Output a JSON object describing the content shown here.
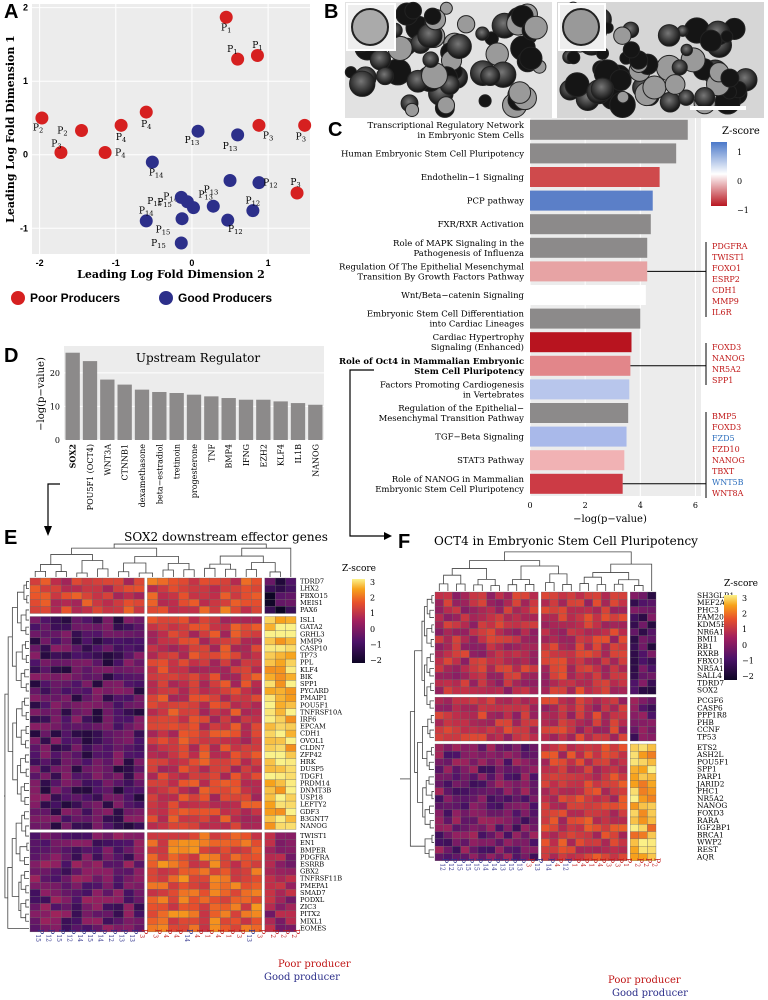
{
  "panel_labels": {
    "A": "A",
    "B": "B",
    "C": "C",
    "D": "D",
    "E": "E",
    "F": "F"
  },
  "chart_data": [
    {
      "id": "A",
      "type": "scatter",
      "xlabel": "Leading Log Fold Dimension 2",
      "ylabel": "Leading Log Fold Dimension 1",
      "xlim": [
        -2.1,
        1.55
      ],
      "ylim": [
        -1.35,
        2.05
      ],
      "xticks": [
        "-2",
        "-1",
        "0",
        "1"
      ],
      "yticks": [
        "-1",
        "0",
        "1",
        "2"
      ],
      "colors": {
        "poor": "#d62020",
        "good": "#2c2f8a"
      },
      "legend": {
        "poor": "Poor Producers",
        "good": "Good Producers"
      },
      "points": [
        {
          "x": 0.45,
          "y": 1.87,
          "g": "poor",
          "label": "P1",
          "lx": 0.0,
          "ly": -0.14
        },
        {
          "x": 0.6,
          "y": 1.3,
          "g": "poor",
          "label": "P1",
          "lx": -0.07,
          "ly": 0.14
        },
        {
          "x": 0.86,
          "y": 1.35,
          "g": "poor",
          "label": "P1",
          "lx": 0.0,
          "ly": 0.14
        },
        {
          "x": -1.97,
          "y": 0.5,
          "g": "poor",
          "label": "P2",
          "lx": -0.05,
          "ly": -0.13
        },
        {
          "x": -1.45,
          "y": 0.33,
          "g": "poor",
          "label": "P2",
          "lx": -0.25,
          "ly": 0.0
        },
        {
          "x": -1.72,
          "y": 0.03,
          "g": "poor",
          "label": "P3",
          "lx": -0.06,
          "ly": 0.12
        },
        {
          "x": -0.6,
          "y": 0.58,
          "g": "poor",
          "label": "P4",
          "lx": 0.0,
          "ly": -0.16
        },
        {
          "x": -0.93,
          "y": 0.4,
          "g": "poor",
          "label": "P4",
          "lx": 0.0,
          "ly": -0.16
        },
        {
          "x": -1.14,
          "y": 0.03,
          "g": "poor",
          "label": "P4",
          "lx": 0.2,
          "ly": 0.0
        },
        {
          "x": 0.88,
          "y": 0.4,
          "g": "poor",
          "label": "P3",
          "lx": 0.12,
          "ly": -0.14
        },
        {
          "x": 1.48,
          "y": 0.4,
          "g": "poor",
          "label": "P3",
          "lx": -0.05,
          "ly": -0.15
        },
        {
          "x": 1.38,
          "y": -0.52,
          "g": "poor",
          "label": "P3",
          "lx": -0.02,
          "ly": 0.15
        },
        {
          "x": 0.08,
          "y": 0.32,
          "g": "good",
          "label": "P13",
          "lx": -0.08,
          "ly": -0.12
        },
        {
          "x": 0.6,
          "y": 0.27,
          "g": "good",
          "label": "P13",
          "lx": -0.1,
          "ly": -0.15
        },
        {
          "x": -0.52,
          "y": -0.1,
          "g": "good",
          "label": "P14",
          "lx": 0.05,
          "ly": -0.14
        },
        {
          "x": 0.5,
          "y": -0.35,
          "g": "good",
          "label": "P13",
          "lx": -0.25,
          "ly": -0.12
        },
        {
          "x": -0.06,
          "y": -0.64,
          "g": "good",
          "label": "P15",
          "lx": -0.3,
          "ly": 0.0
        },
        {
          "x": 0.02,
          "y": -0.72,
          "g": "good",
          "label": "P14",
          "lx": -0.3,
          "ly": 0.15
        },
        {
          "x": -0.14,
          "y": -0.58,
          "g": "good",
          "label": "P15",
          "lx": -0.35,
          "ly": -0.05
        },
        {
          "x": 0.28,
          "y": -0.7,
          "g": "good",
          "label": "P13",
          "lx": -0.1,
          "ly": 0.16
        },
        {
          "x": 0.47,
          "y": -0.89,
          "g": "good",
          "label": "P12",
          "lx": 0.1,
          "ly": -0.12
        },
        {
          "x": 0.8,
          "y": -0.76,
          "g": "good",
          "label": "P12",
          "lx": 0.0,
          "ly": 0.14
        },
        {
          "x": -0.13,
          "y": -0.87,
          "g": "good",
          "label": "P15",
          "lx": -0.25,
          "ly": -0.15
        },
        {
          "x": -0.14,
          "y": -1.2,
          "g": "good",
          "label": "P15",
          "lx": -0.3,
          "ly": 0.0
        },
        {
          "x": -0.6,
          "y": -0.9,
          "g": "good",
          "label": "P14",
          "lx": 0.0,
          "ly": 0.14
        },
        {
          "x": 0.88,
          "y": -0.38,
          "g": "good",
          "label": "P12",
          "lx": 0.15,
          "ly": 0.0
        }
      ]
    },
    {
      "id": "C",
      "type": "bar",
      "orientation": "horizontal",
      "xlabel": "−log(p−value)",
      "xlim": [
        0,
        6.2
      ],
      "xticks": [
        "0",
        "2",
        "4",
        "6"
      ],
      "legend_title": "Z-score",
      "legend_ticks": [
        "1",
        "0",
        "−1"
      ],
      "categories": [
        [
          "Transcriptional Regulatory Network",
          "in Embryonic Stem Cells"
        ],
        [
          "Human Embryonic Stem Cell Pluripotency"
        ],
        [
          "Endothelin−1 Signaling"
        ],
        [
          "PCP pathway"
        ],
        [
          "FXR/RXR Activation"
        ],
        [
          "Role of MAPK Signaling in the",
          "Pathogenesis of Influenza"
        ],
        [
          "Regulation Of The Epithelial Mesenchymal",
          "Transition By Growth Factors Pathway"
        ],
        [
          "Wnt/Beta−catenin Signaling"
        ],
        [
          "Embryonic Stem Cell Differentiation",
          "into Cardiac Lineages"
        ],
        [
          "Cardiac Hypertrophy",
          "Signaling (Enhanced)"
        ],
        [
          "Role of Oct4 in Mammalian Embryonic",
          "Stem Cell Pluripotency"
        ],
        [
          "Factors Promoting Cardiogenesis",
          "in Vertebrates"
        ],
        [
          "Regulation of the Epithelial−",
          "Mesenchymal Transition Pathway"
        ],
        [
          "TGF−Beta Signaling"
        ],
        [
          "STAT3 Pathway"
        ],
        [
          "Role of NANOG in Mammalian",
          "Embryonic Stem Cell Pluripotency"
        ]
      ],
      "values": [
        5.72,
        5.3,
        4.7,
        4.45,
        4.38,
        4.25,
        4.25,
        4.2,
        4.0,
        3.68,
        3.64,
        3.6,
        3.56,
        3.5,
        3.42,
        3.36
      ],
      "bar_colors": [
        "#8c8a8a",
        "#8c8a8a",
        "#cf4a4c",
        "#5b7fc8",
        "#8c8a8a",
        "#8c8a8a",
        "#e7a3a4",
        "#ffffff",
        "#8c8a8a",
        "#b8141f",
        "#e2868a",
        "#b8c6ec",
        "#8c8a8a",
        "#a9b9ea",
        "#f1b2b4",
        "#cc3b45"
      ],
      "gene_boxes": [
        {
          "genes": [
            [
              "PDGFRA",
              "#c01717"
            ],
            [
              "TWIST1",
              "#c01717"
            ],
            [
              "FOXO1",
              "#c01717"
            ],
            [
              "ESRP2",
              "#c01717"
            ],
            [
              "CDH1",
              "#c01717"
            ],
            [
              "MMP9",
              "#c01717"
            ],
            [
              "IL6R",
              "#c01717"
            ]
          ]
        },
        {
          "genes": [
            [
              "FOXD3",
              "#c01717"
            ],
            [
              "NANOG",
              "#c01717"
            ],
            [
              "NR5A2",
              "#c01717"
            ],
            [
              "SPP1",
              "#c01717"
            ]
          ]
        },
        {
          "genes": [
            [
              "BMP5",
              "#c01717"
            ],
            [
              "FOXD3",
              "#c01717"
            ],
            [
              "FZD5",
              "#2e6fbd"
            ],
            [
              "FZD10",
              "#c01717"
            ],
            [
              "NANOG",
              "#c01717"
            ],
            [
              "TBXT",
              "#c01717"
            ],
            [
              "WNT5B",
              "#2e6fbd"
            ],
            [
              "WNT8A",
              "#c01717"
            ]
          ]
        }
      ]
    },
    {
      "id": "D",
      "type": "bar",
      "title": "Upstream Regulator",
      "ylabel": "−log(p−value)",
      "ylim": [
        0,
        28
      ],
      "yticks": [
        "0",
        "10",
        "20"
      ],
      "categories": [
        "SOX2",
        "POU5F1 (OCT4)",
        "WNT3A",
        "CTNNB1",
        "dexamethasone",
        "beta−estradiol",
        "tretinoin",
        "progesterone",
        "TNF",
        "BMP4",
        "IFNG",
        "EZH2",
        "KLF4",
        "IL1B",
        "NANOG"
      ],
      "values": [
        26,
        23.5,
        18,
        16.5,
        15,
        14.3,
        14,
        13.5,
        13,
        12.5,
        12,
        12,
        11.5,
        11,
        10.5
      ]
    }
  ],
  "panelE": {
    "title": "SOX2 downstream effector genes",
    "legend_title": "Z-score",
    "legend_ticks": [
      "3",
      "2",
      "1",
      "0",
      "−1",
      "−2"
    ],
    "genes": [
      "TDRD7",
      "LHX2",
      "FBXO15",
      "MEIS1",
      "PAX6",
      "ISL1",
      "GATA2",
      "GRHL3",
      "MMP9",
      "CASP10",
      "TP73",
      "PPL",
      "KLF4",
      "BIK",
      "SPP1",
      "PYCARD",
      "PMAIP1",
      "POU5F1",
      "TNFRSF10A",
      "IRF6",
      "EPCAM",
      "CDH1",
      "OVOL1",
      "CLDN7",
      "ZFP42",
      "HRK",
      "DUSP5",
      "TDGF1",
      "PRDM14",
      "DNMT3B",
      "USP18",
      "LEFTY2",
      "GDF3",
      "B3GNT7",
      "NANOG",
      "TWIST1",
      "EN1",
      "BMPER",
      "PDGFRA",
      "ESRRB",
      "GBX2",
      "TNFRSF11B",
      "PMEPA1",
      "SMAD7",
      "PODXL",
      "ZIC3",
      "PITX2",
      "MIXL1",
      "EOMES"
    ],
    "columns": [
      {
        "l": "P15",
        "g": "good"
      },
      {
        "l": "P12",
        "g": "good"
      },
      {
        "l": "P15",
        "g": "good"
      },
      {
        "l": "P12",
        "g": "good"
      },
      {
        "l": "P14",
        "g": "good"
      },
      {
        "l": "P15",
        "g": "good"
      },
      {
        "l": "P14",
        "g": "good"
      },
      {
        "l": "P12",
        "g": "good"
      },
      {
        "l": "P13",
        "g": "good"
      },
      {
        "l": "P13",
        "g": "good"
      },
      {
        "l": "P3",
        "g": "poor"
      },
      {
        "l": "P3",
        "g": "poor"
      },
      {
        "l": "P4",
        "g": "poor"
      },
      {
        "l": "P4",
        "g": "poor"
      },
      {
        "l": "P14",
        "g": "good"
      },
      {
        "l": "P4",
        "g": "poor"
      },
      {
        "l": "P1",
        "g": "poor"
      },
      {
        "l": "P4",
        "g": "poor"
      },
      {
        "l": "P1",
        "g": "poor"
      },
      {
        "l": "P3",
        "g": "poor"
      },
      {
        "l": "P13",
        "g": "good"
      },
      {
        "l": "P3",
        "g": "poor"
      },
      {
        "l": "P2",
        "g": "poor"
      },
      {
        "l": "P2",
        "g": "poor"
      },
      {
        "l": "P2",
        "g": "poor"
      }
    ],
    "legend_poor": "Poor producer",
    "legend_good": "Good producer"
  },
  "panelF": {
    "title": "OCT4 in Embryonic Stem Cell Pluripotency",
    "legend_title": "Z-score",
    "legend_ticks": [
      "3",
      "2",
      "1",
      "0",
      "−1",
      "−2"
    ],
    "genes": [
      "SH3GLB1",
      "MEF2A",
      "PHC3",
      "FAM208A",
      "KDM5B",
      "NR6A1",
      "BMI1",
      "RB1",
      "RXRB",
      "FBXO15",
      "NR5A1",
      "SALL4",
      "TDRD7",
      "SOX2",
      "PCGF6",
      "CASP6",
      "PPP1R8",
      "PHB",
      "CCNF",
      "TP53",
      "ETS2",
      "ASH2L",
      "POU5F1",
      "SPP1",
      "PARP1",
      "JARID2",
      "PHC1",
      "NR5A2",
      "NANOG",
      "FOXD3",
      "RARA",
      "IGF2BP1",
      "BRCA1",
      "WWP2",
      "REST",
      "AQR"
    ],
    "columns": [
      {
        "l": "P12",
        "g": "good"
      },
      {
        "l": "P12",
        "g": "good"
      },
      {
        "l": "P15",
        "g": "good"
      },
      {
        "l": "P15",
        "g": "good"
      },
      {
        "l": "P15",
        "g": "good"
      },
      {
        "l": "P14",
        "g": "good"
      },
      {
        "l": "P14",
        "g": "good"
      },
      {
        "l": "P13",
        "g": "good"
      },
      {
        "l": "P15",
        "g": "good"
      },
      {
        "l": "P13",
        "g": "good"
      },
      {
        "l": "P3",
        "g": "poor"
      },
      {
        "l": "P13",
        "g": "good"
      },
      {
        "l": "P14",
        "g": "good"
      },
      {
        "l": "P4",
        "g": "poor"
      },
      {
        "l": "P12",
        "g": "good"
      },
      {
        "l": "P1",
        "g": "poor"
      },
      {
        "l": "P4",
        "g": "poor"
      },
      {
        "l": "P1",
        "g": "poor"
      },
      {
        "l": "P4",
        "g": "poor"
      },
      {
        "l": "P3",
        "g": "poor"
      },
      {
        "l": "P3",
        "g": "poor"
      },
      {
        "l": "P1",
        "g": "poor"
      },
      {
        "l": "P2",
        "g": "poor"
      },
      {
        "l": "P2",
        "g": "poor"
      },
      {
        "l": "P2",
        "g": "poor"
      }
    ],
    "legend_poor": "Poor producer",
    "legend_good": "Good producer"
  }
}
